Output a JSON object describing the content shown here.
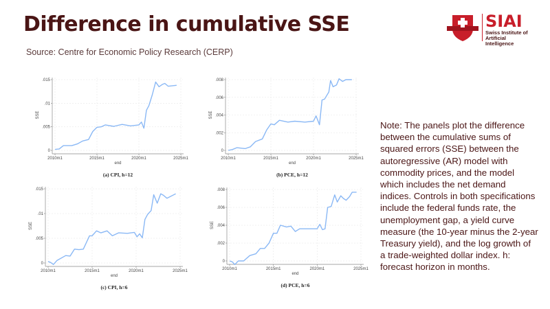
{
  "header": {
    "title": "Difference in cumulative SSE",
    "source": "Source: Centre for Economic Policy Research (CERP)"
  },
  "logo": {
    "name": "SIAI",
    "subtitle_line1": "Swiss Institute of",
    "subtitle_line2": "Artificial Intelligence"
  },
  "note": "Note: The panels plot the difference between the cumulative sums of squared errors (SSE) between the autoregressive (AR) model with commodity prices, and the model which includes the net demand indices. Controls in both specifications include the federal funds rate, the unemployment gap, a yield curve measure (the 10-year minus the 2-year Treasury yield), and the log growth of a trade-weighted dollar index. h: forecast horizon in months.",
  "colors": {
    "line": "#8ab8f5",
    "title": "#4a1515",
    "brand": "#c81e2a"
  },
  "chart_data": [
    {
      "type": "line",
      "title": "(a) CPI, h=12",
      "xlabel": "end",
      "ylabel": "SSE",
      "xlim": [
        2010,
        2025
      ],
      "ylim": [
        0,
        0.015
      ],
      "xticks": [
        "2010m1",
        "2015m1",
        "2020m1",
        "2025m1"
      ],
      "yticks": [
        "0",
        ".005",
        ".01",
        ".015"
      ],
      "ytick_values": [
        0,
        0.005,
        0.01,
        0.015
      ],
      "x": [
        2010,
        2010.5,
        2011,
        2012,
        2012.7,
        2013.3,
        2014,
        2014.5,
        2015,
        2015.5,
        2016,
        2017,
        2018,
        2019,
        2020,
        2020.3,
        2020.6,
        2020.9,
        2021.2,
        2021.6,
        2022,
        2022.4,
        2022.8,
        2023.1,
        2023.5,
        2024.5
      ],
      "y": [
        0.0002,
        0.0003,
        0.001,
        0.001,
        0.0014,
        0.002,
        0.0023,
        0.004,
        0.0049,
        0.005,
        0.0054,
        0.0051,
        0.0055,
        0.0052,
        0.0054,
        0.006,
        0.0047,
        0.0085,
        0.0095,
        0.0118,
        0.0145,
        0.0135,
        0.014,
        0.0142,
        0.0136,
        0.0138
      ]
    },
    {
      "type": "line",
      "title": "(b) PCE, h=12",
      "xlabel": "end",
      "ylabel": "SSE",
      "xlim": [
        2010,
        2025
      ],
      "ylim": [
        0,
        0.008
      ],
      "xticks": [
        "2010m1",
        "2015m1",
        "2020m1",
        "2025m1"
      ],
      "yticks": [
        "0",
        ".002",
        ".004",
        ".006",
        ".008"
      ],
      "ytick_values": [
        0,
        0.002,
        0.004,
        0.006,
        0.008
      ],
      "x": [
        2010,
        2010.5,
        2011,
        2012,
        2012.6,
        2013.2,
        2014,
        2014.5,
        2015,
        2015.4,
        2016,
        2017,
        2017.8,
        2019,
        2020,
        2020.3,
        2020.7,
        2021,
        2021.3,
        2021.8,
        2022,
        2022.3,
        2022.7,
        2023,
        2023.4,
        2023.8,
        2024.5
      ],
      "y": [
        0,
        0.0001,
        0.0003,
        0.0002,
        0.0004,
        0.001,
        0.0013,
        0.0023,
        0.003,
        0.0029,
        0.0034,
        0.0032,
        0.0033,
        0.0032,
        0.0033,
        0.0039,
        0.0029,
        0.0057,
        0.0058,
        0.0066,
        0.0079,
        0.0072,
        0.0074,
        0.0081,
        0.0078,
        0.008,
        0.008
      ]
    },
    {
      "type": "line",
      "title": "(c) CPI, h=6",
      "xlabel": "end",
      "ylabel": "SSE",
      "xlim": [
        2010,
        2025
      ],
      "ylim": [
        0,
        0.015
      ],
      "xticks": [
        "2010m1",
        "2015m1",
        "2020m1",
        "2025m1"
      ],
      "yticks": [
        "0",
        ".005",
        ".01",
        ".015"
      ],
      "ytick_values": [
        0,
        0.005,
        0.01,
        0.015
      ],
      "x": [
        2010,
        2010.3,
        2010.6,
        2011,
        2012,
        2012.5,
        2013,
        2013.5,
        2014,
        2014.7,
        2015,
        2015.5,
        2016,
        2016.7,
        2017.3,
        2018,
        2019,
        2019.8,
        2020.1,
        2020.4,
        2020.7,
        2021,
        2021.3,
        2021.7,
        2022,
        2022.4,
        2022.8,
        2023.1,
        2023.5,
        2024.5
      ],
      "y": [
        0.0003,
        0.0001,
        -0.0003,
        0.0005,
        0.0015,
        0.0014,
        0.0028,
        0.0027,
        0.0028,
        0.0055,
        0.0055,
        0.0065,
        0.0061,
        0.0065,
        0.0055,
        0.0061,
        0.006,
        0.0062,
        0.0053,
        0.0059,
        0.0051,
        0.0088,
        0.0098,
        0.0106,
        0.0138,
        0.0121,
        0.014,
        0.0137,
        0.0131,
        0.014
      ]
    },
    {
      "type": "line",
      "title": "(d) PCE, h=6",
      "xlabel": "end",
      "ylabel": "SSE",
      "xlim": [
        2010,
        2025
      ],
      "ylim": [
        0,
        0.008
      ],
      "xticks": [
        "2010m1",
        "2015m1",
        "2020m1",
        "2025m1"
      ],
      "yticks": [
        "0",
        ".002",
        ".004",
        ".006",
        ".008"
      ],
      "ytick_values": [
        0,
        0.002,
        0.004,
        0.006,
        0.008
      ],
      "x": [
        2010,
        2010.3,
        2010.6,
        2011,
        2011.6,
        2012.3,
        2013,
        2013.5,
        2014,
        2014.5,
        2015,
        2015.4,
        2015.8,
        2016.5,
        2017,
        2017.5,
        2018,
        2019,
        2020,
        2020.3,
        2020.6,
        2020.9,
        2021.2,
        2021.6,
        2022,
        2022.3,
        2022.7,
        2023,
        2023.3,
        2023.7,
        2024,
        2024.5
      ],
      "y": [
        0,
        -0.0001,
        -0.0004,
        0,
        0,
        0.0006,
        0.0008,
        0.0014,
        0.0014,
        0.002,
        0.0031,
        0.0031,
        0.004,
        0.0038,
        0.0039,
        0.0033,
        0.0036,
        0.0036,
        0.0036,
        0.0041,
        0.0035,
        0.0036,
        0.006,
        0.0061,
        0.0074,
        0.0066,
        0.0073,
        0.007,
        0.0068,
        0.0072,
        0.0077,
        0.0077
      ]
    }
  ]
}
